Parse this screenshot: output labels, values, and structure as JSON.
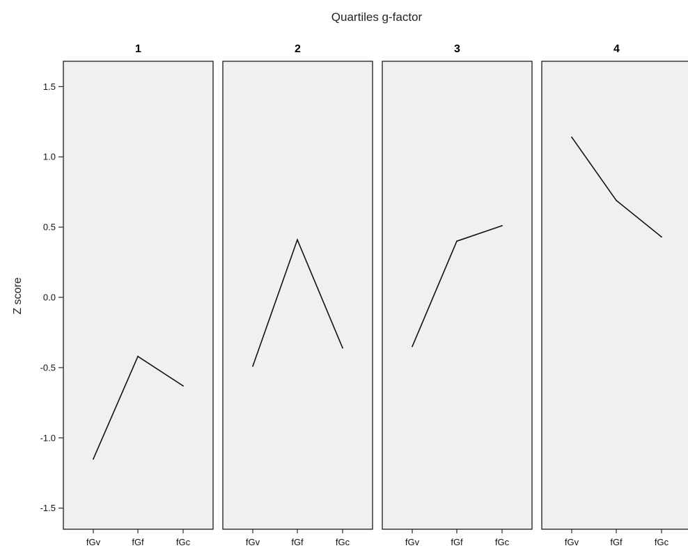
{
  "chart_data": {
    "type": "line",
    "title": "Quartiles g-factor",
    "ylabel": "Z score",
    "xlabel": "",
    "ylim": [
      -1.65,
      1.68
    ],
    "yticks": [
      "1.5",
      "1.0",
      "0.5",
      "0.0",
      "-0.5",
      "-1.0",
      "-1.5"
    ],
    "ytick_values": [
      1.5,
      1.0,
      0.5,
      0.0,
      -0.5,
      -1.0,
      -1.5
    ],
    "categories": [
      "fGv",
      "fGf",
      "fGc"
    ],
    "grid": false,
    "panels": [
      {
        "label": "1",
        "values": [
          -1.15,
          -0.42,
          -0.63
        ]
      },
      {
        "label": "2",
        "values": [
          -0.49,
          0.41,
          -0.36
        ]
      },
      {
        "label": "3",
        "values": [
          -0.35,
          0.4,
          0.51
        ]
      },
      {
        "label": "4",
        "values": [
          1.14,
          0.69,
          0.43
        ]
      }
    ],
    "colors": {
      "panel_bg": "#f0f0f0",
      "line": "#111111",
      "border": "#1a1a1a"
    }
  }
}
